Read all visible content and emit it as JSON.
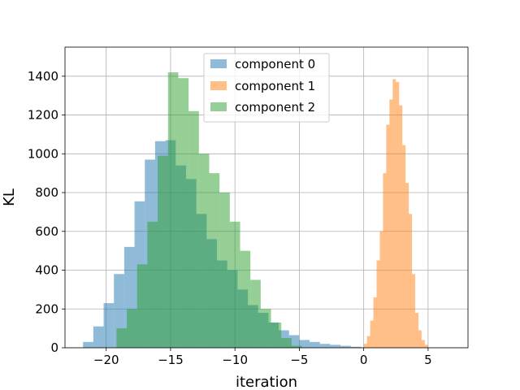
{
  "chart_data": {
    "type": "histogram",
    "title": "",
    "xlabel": "iteration",
    "ylabel": "KL",
    "xlim": [
      -23.2,
      8.1
    ],
    "ylim": [
      0,
      1550
    ],
    "xticks": [
      -20,
      -15,
      -10,
      -5,
      0,
      5
    ],
    "yticks": [
      0,
      200,
      400,
      600,
      800,
      1000,
      1200,
      1400
    ],
    "grid": true,
    "legend": {
      "position": "top-center"
    },
    "series": [
      {
        "name": "component 0",
        "color": "#1f77b4",
        "alpha": 0.5,
        "bins": [
          -21.8,
          -21.0,
          -20.2,
          -19.4,
          -18.6,
          -17.8,
          -17.0,
          -16.2,
          -15.4,
          -14.6,
          -13.8,
          -13.0,
          -12.2,
          -11.4,
          -10.6,
          -9.8,
          -9.0,
          -8.2,
          -7.4,
          -6.6,
          -5.8,
          -5.0,
          -4.2,
          -3.4,
          -2.6,
          -1.8,
          -1.0,
          -0.2
        ],
        "counts": [
          30,
          110,
          230,
          380,
          520,
          755,
          970,
          1065,
          1070,
          940,
          870,
          690,
          560,
          450,
          400,
          300,
          220,
          180,
          130,
          90,
          65,
          40,
          30,
          20,
          15,
          10,
          5
        ]
      },
      {
        "name": "component 1",
        "color": "#ff7f0e",
        "alpha": 0.5,
        "bins": [
          0.0,
          0.25,
          0.5,
          0.75,
          1.0,
          1.25,
          1.5,
          1.75,
          2.0,
          2.25,
          2.5,
          2.75,
          3.0,
          3.25,
          3.5,
          3.75,
          4.0,
          4.25,
          4.5,
          4.75,
          5.0
        ],
        "counts": [
          20,
          60,
          140,
          260,
          450,
          600,
          900,
          1150,
          1280,
          1385,
          1370,
          1250,
          1045,
          850,
          690,
          380,
          180,
          90,
          40,
          15
        ]
      },
      {
        "name": "component 2",
        "color": "#2ca02c",
        "alpha": 0.5,
        "bins": [
          -19.2,
          -18.4,
          -17.6,
          -16.8,
          -16.0,
          -15.2,
          -14.4,
          -13.6,
          -12.8,
          -12.0,
          -11.2,
          -10.4,
          -9.6,
          -8.8,
          -8.0,
          -7.2,
          -6.4,
          -5.6,
          -4.8
        ],
        "counts": [
          100,
          200,
          430,
          650,
          990,
          1420,
          1390,
          1220,
          1000,
          900,
          800,
          650,
          500,
          350,
          200,
          130,
          50,
          10
        ]
      }
    ]
  }
}
